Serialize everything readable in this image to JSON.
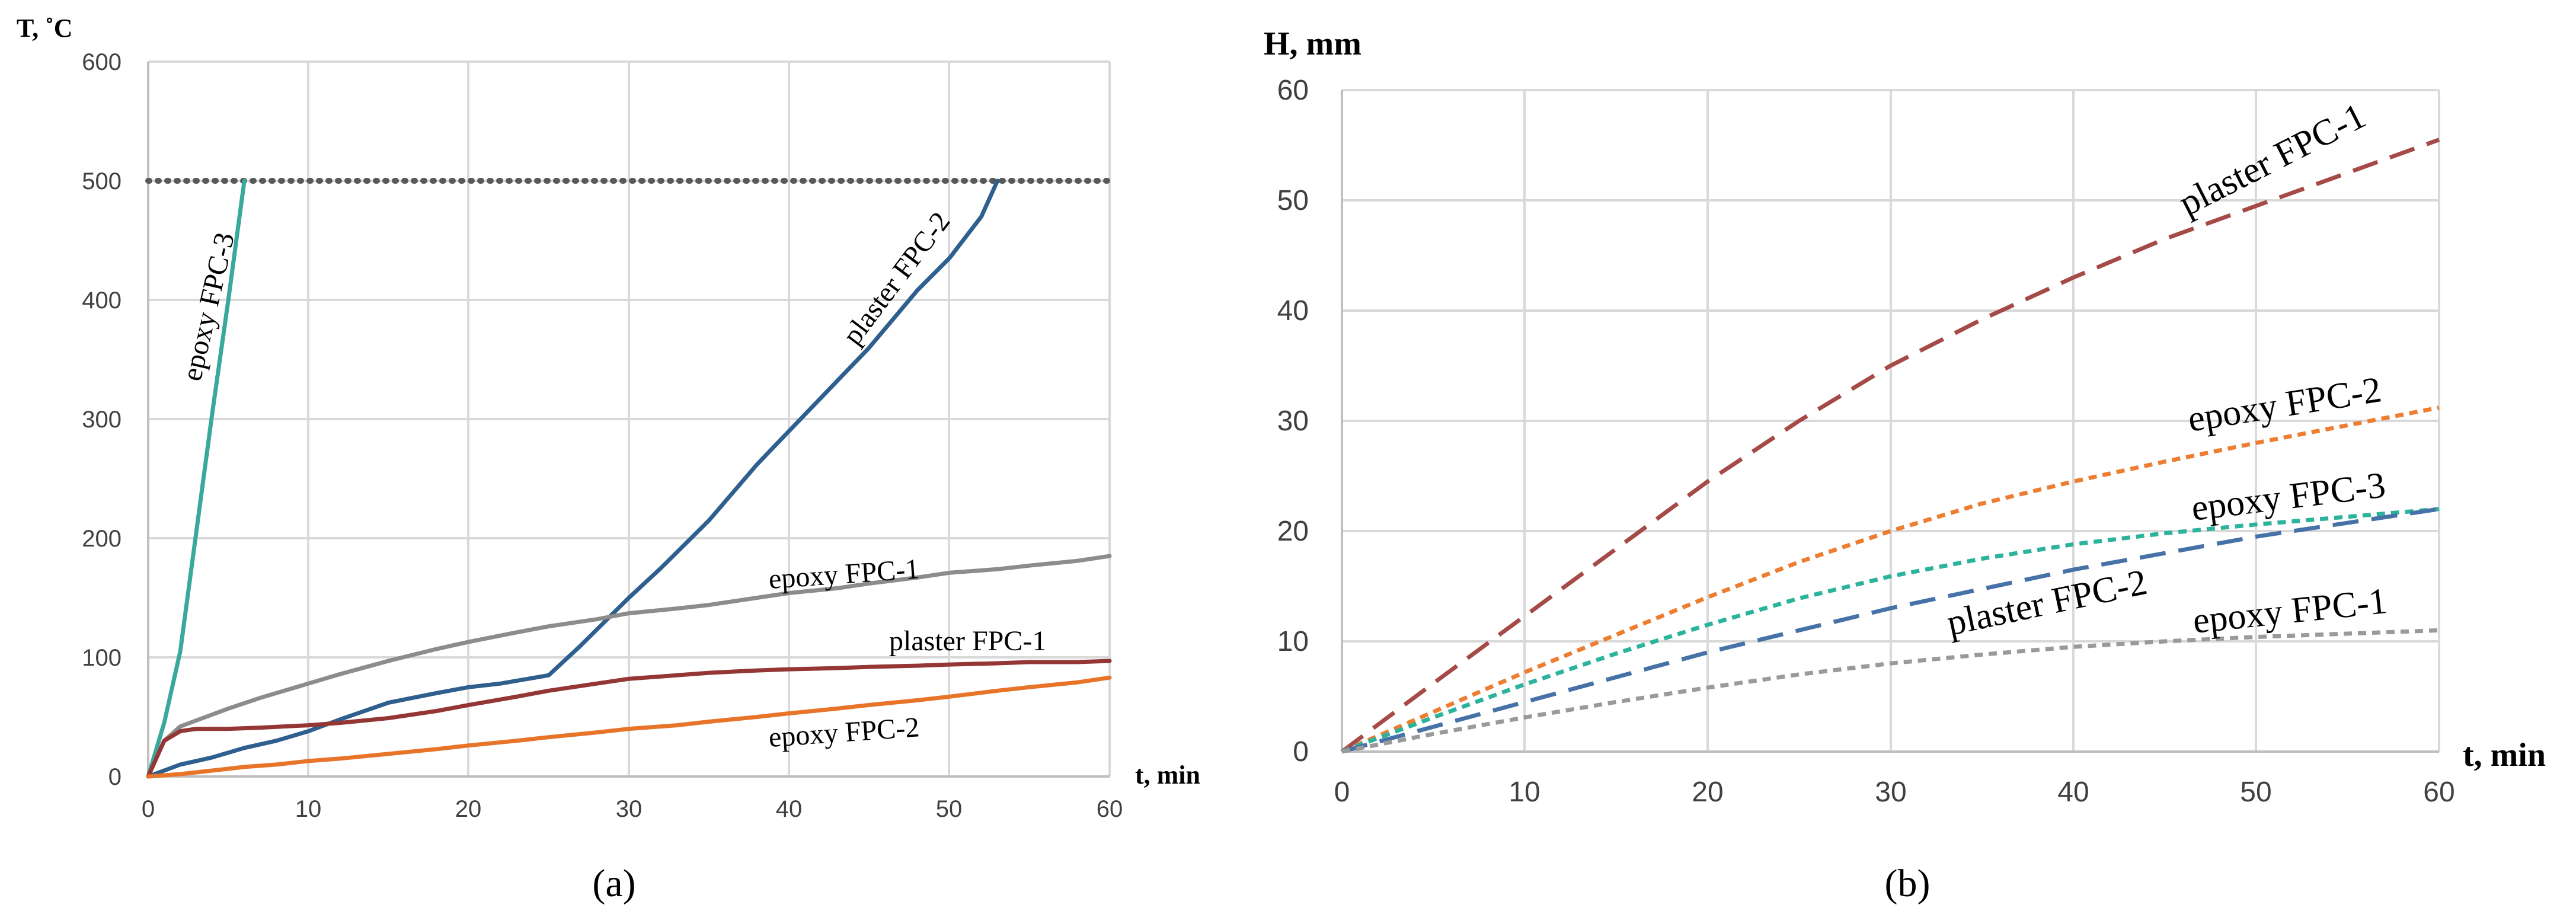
{
  "chart_data": [
    {
      "type": "line",
      "panel_label": "(a)",
      "xlabel": "t, min",
      "ylabel": "T, ˚C",
      "xlim": [
        0,
        60
      ],
      "ylim": [
        0,
        600
      ],
      "xticks": [
        "0",
        "10",
        "20",
        "30",
        "40",
        "50",
        "60"
      ],
      "yticks": [
        "0",
        "100",
        "200",
        "300",
        "400",
        "500",
        "600"
      ],
      "grid": true,
      "reference_line": {
        "y": 500,
        "style": "dotted",
        "color": "#595959"
      },
      "series": [
        {
          "name": "epoxy FPC-3",
          "color": "#3aa89c",
          "style": "solid",
          "x": [
            0,
            1,
            2,
            3,
            4,
            5,
            6
          ],
          "y": [
            0,
            45,
            105,
            205,
            305,
            400,
            500
          ]
        },
        {
          "name": "plaster FPC-2",
          "color": "#2e5f8e",
          "style": "solid",
          "x": [
            0,
            1,
            2,
            3,
            4,
            5,
            6,
            8,
            10,
            12,
            15,
            18,
            20,
            22,
            25,
            27,
            30,
            32,
            35,
            38,
            40,
            42,
            45,
            48,
            50,
            52,
            53
          ],
          "y": [
            0,
            5,
            10,
            13,
            16,
            20,
            24,
            30,
            38,
            48,
            62,
            70,
            75,
            78,
            85,
            110,
            150,
            175,
            215,
            262,
            290,
            318,
            360,
            408,
            435,
            470,
            500
          ]
        },
        {
          "name": "epoxy FPC-1",
          "color": "#8c8c8c",
          "style": "solid",
          "x": [
            0,
            1,
            2,
            3,
            5,
            7,
            10,
            12,
            15,
            18,
            20,
            23,
            25,
            28,
            30,
            33,
            35,
            38,
            40,
            43,
            45,
            48,
            50,
            53,
            55,
            58,
            60
          ],
          "y": [
            0,
            30,
            42,
            47,
            57,
            66,
            78,
            86,
            97,
            107,
            113,
            121,
            126,
            132,
            137,
            141,
            144,
            150,
            154,
            158,
            162,
            167,
            171,
            174,
            177,
            181,
            185
          ]
        },
        {
          "name": "plaster FPC-1",
          "color": "#943634",
          "style": "solid",
          "x": [
            0,
            1,
            2,
            3,
            5,
            7,
            10,
            12,
            15,
            18,
            20,
            23,
            25,
            28,
            30,
            33,
            35,
            38,
            40,
            43,
            45,
            48,
            50,
            53,
            55,
            58,
            60
          ],
          "y": [
            0,
            30,
            38,
            40,
            40,
            41,
            43,
            45,
            49,
            55,
            60,
            67,
            72,
            78,
            82,
            85,
            87,
            89,
            90,
            91,
            92,
            93,
            94,
            95,
            96,
            96,
            97
          ]
        },
        {
          "name": "epoxy FPC-2",
          "color": "#e8742a",
          "style": "solid",
          "x": [
            0,
            2,
            4,
            6,
            8,
            10,
            12,
            15,
            18,
            20,
            23,
            25,
            28,
            30,
            33,
            35,
            38,
            40,
            43,
            45,
            48,
            50,
            53,
            55,
            58,
            60
          ],
          "y": [
            0,
            2,
            5,
            8,
            10,
            13,
            15,
            19,
            23,
            26,
            30,
            33,
            37,
            40,
            43,
            46,
            50,
            53,
            57,
            60,
            64,
            67,
            72,
            75,
            79,
            83
          ]
        }
      ],
      "annotations": [
        {
          "text": "epoxy FPC-3",
          "series": "epoxy FPC-3"
        },
        {
          "text": "plaster FPC-2",
          "series": "plaster FPC-2"
        },
        {
          "text": "epoxy FPC-1",
          "series": "epoxy FPC-1"
        },
        {
          "text": "plaster FPC-1",
          "series": "plaster FPC-1"
        },
        {
          "text": "epoxy FPC-2",
          "series": "epoxy FPC-2"
        }
      ]
    },
    {
      "type": "line",
      "panel_label": "(b)",
      "xlabel": "t, min",
      "ylabel": "H, mm",
      "xlim": [
        0,
        60
      ],
      "ylim": [
        0,
        60
      ],
      "xticks": [
        "0",
        "10",
        "20",
        "30",
        "40",
        "50",
        "60"
      ],
      "yticks": [
        "0",
        "10",
        "20",
        "30",
        "40",
        "50",
        "60"
      ],
      "grid": true,
      "series": [
        {
          "name": "plaster FPC-1",
          "color": "#a54a47",
          "style": "long-dash",
          "x": [
            0,
            5,
            10,
            15,
            20,
            25,
            30,
            35,
            40,
            45,
            50,
            55,
            60
          ],
          "y": [
            0,
            6.2,
            12.3,
            18.4,
            24.5,
            30.0,
            35.0,
            39.2,
            43.0,
            46.5,
            49.5,
            52.5,
            55.5
          ]
        },
        {
          "name": "epoxy FPC-2",
          "color": "#ed7d31",
          "style": "short-dash",
          "x": [
            0,
            5,
            10,
            15,
            20,
            25,
            30,
            35,
            40,
            45,
            50,
            55,
            60
          ],
          "y": [
            0,
            3.6,
            7.2,
            10.6,
            14.0,
            17.2,
            20.0,
            22.5,
            24.5,
            26.3,
            28.0,
            29.6,
            31.2
          ]
        },
        {
          "name": "epoxy FPC-3",
          "color": "#2bb39b",
          "style": "short-dash",
          "x": [
            0,
            5,
            10,
            15,
            20,
            25,
            30,
            35,
            40,
            45,
            50,
            55,
            60
          ],
          "y": [
            0,
            3.1,
            6.1,
            8.9,
            11.5,
            13.9,
            15.9,
            17.5,
            18.8,
            19.8,
            20.6,
            21.3,
            22.0
          ]
        },
        {
          "name": "plaster FPC-2",
          "color": "#4672a8",
          "style": "long-dash",
          "x": [
            0,
            10,
            20,
            30,
            40,
            50,
            60
          ],
          "y": [
            0,
            4.5,
            9.0,
            13.0,
            16.5,
            19.5,
            22.0
          ]
        },
        {
          "name": "epoxy FPC-1",
          "color": "#9a9a9a",
          "style": "short-dash",
          "x": [
            0,
            5,
            10,
            15,
            20,
            25,
            30,
            35,
            40,
            45,
            50,
            55,
            60
          ],
          "y": [
            0,
            1.6,
            3.1,
            4.5,
            5.8,
            7.0,
            8.0,
            8.8,
            9.5,
            10.0,
            10.4,
            10.7,
            11.0
          ]
        }
      ],
      "annotations": [
        {
          "text": "plaster FPC-1",
          "series": "plaster FPC-1"
        },
        {
          "text": "epoxy FPC-2",
          "series": "epoxy FPC-2"
        },
        {
          "text": "epoxy FPC-3",
          "series": "epoxy FPC-3"
        },
        {
          "text": "plaster FPC-2",
          "series": "plaster FPC-2"
        },
        {
          "text": "epoxy FPC-1",
          "series": "epoxy FPC-1"
        }
      ]
    }
  ]
}
